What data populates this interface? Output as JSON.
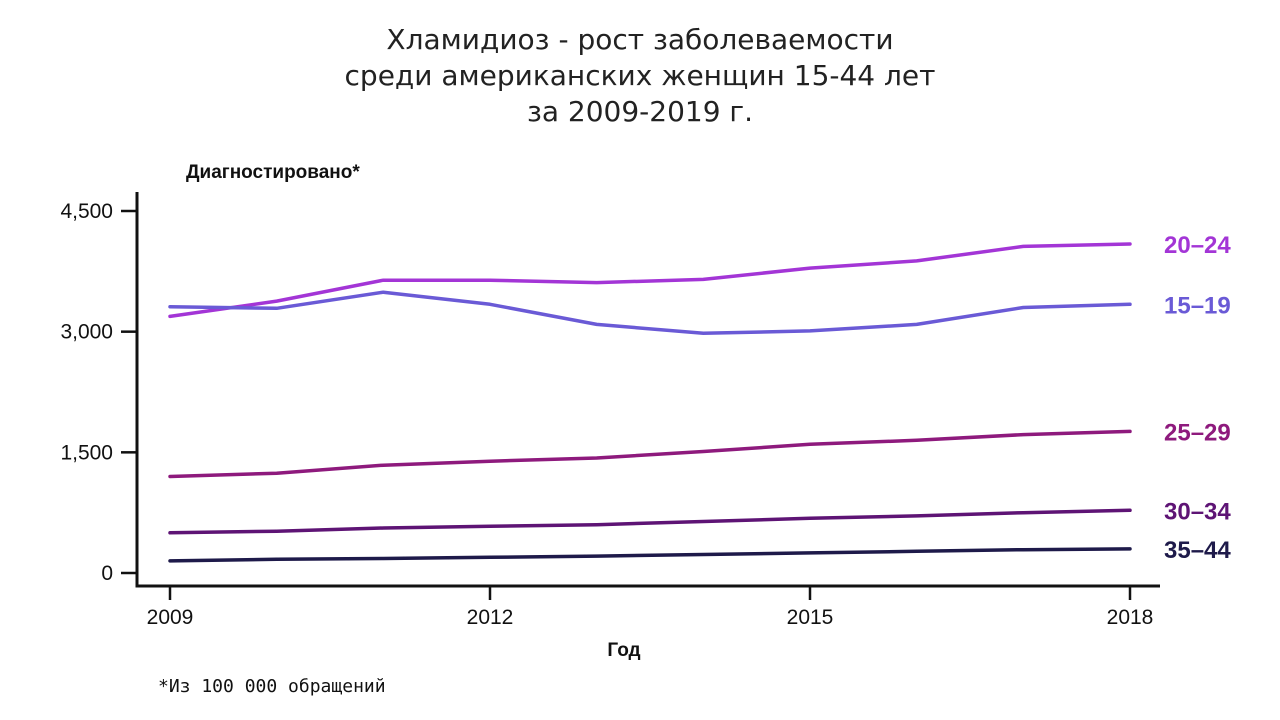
{
  "title_lines": [
    "Хламидиоз - рост заболеваемости",
    "среди американских женщин 15-44 лет",
    "за 2009-2019 г."
  ],
  "footnote": "*Из 100 000 обращений",
  "chart_data": {
    "type": "line",
    "title": "Хламидиоз - рост заболеваемости среди американских женщин 15-44 лет за 2009-2019 г.",
    "xlabel": "Год",
    "ylabel": "Диагностировано*",
    "x": [
      2009,
      2010,
      2011,
      2012,
      2013,
      2014,
      2015,
      2016,
      2017,
      2018
    ],
    "xlim": [
      2009,
      2018
    ],
    "ylim": [
      0,
      4500
    ],
    "x_ticks": [
      2009,
      2012,
      2015,
      2018
    ],
    "x_tick_labels": [
      "2009",
      "2012",
      "2015",
      "2018"
    ],
    "y_ticks": [
      0,
      1500,
      3000,
      4500
    ],
    "y_tick_labels": [
      "0",
      "1,500",
      "3,000",
      "4,500"
    ],
    "grid": false,
    "legend": "end-labels",
    "series": [
      {
        "name": "20–24",
        "color": "#a335d6",
        "values": [
          3190,
          3380,
          3640,
          3640,
          3610,
          3650,
          3790,
          3880,
          4060,
          4090
        ]
      },
      {
        "name": "15–19",
        "color": "#6a5ad6",
        "values": [
          3310,
          3290,
          3490,
          3340,
          3090,
          2980,
          3010,
          3090,
          3300,
          3340
        ]
      },
      {
        "name": "25–29",
        "color": "#8e1a7d",
        "values": [
          1200,
          1240,
          1340,
          1390,
          1430,
          1510,
          1600,
          1650,
          1720,
          1760
        ]
      },
      {
        "name": "30–34",
        "color": "#5e1475",
        "values": [
          500,
          520,
          560,
          580,
          600,
          640,
          680,
          710,
          750,
          780
        ]
      },
      {
        "name": "35–44",
        "color": "#1e1a4a",
        "values": [
          150,
          170,
          180,
          195,
          210,
          230,
          250,
          270,
          290,
          300
        ]
      }
    ]
  }
}
